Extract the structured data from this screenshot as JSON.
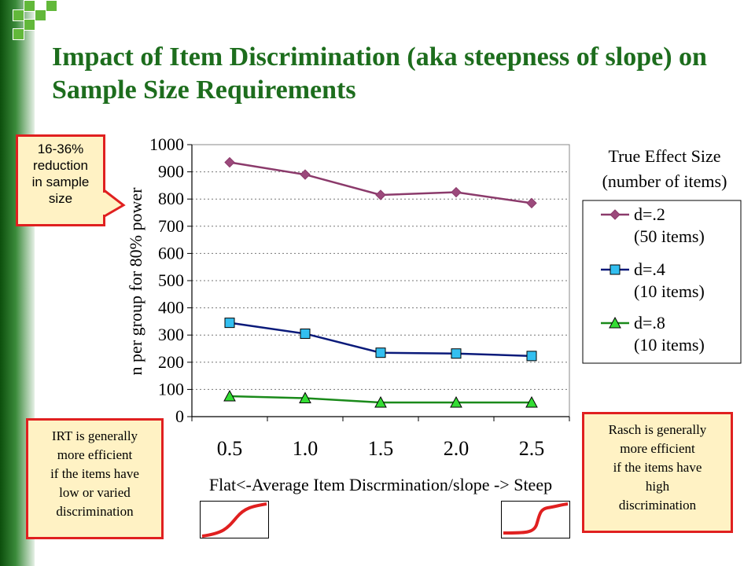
{
  "title": "Impact of Item Discrimination (aka steepness of slope) on Sample Size Requirements",
  "callouts": {
    "reduction": [
      "16-36%",
      "reduction",
      "in sample",
      "size"
    ],
    "irt": [
      "IRT is generally",
      "more efficient",
      "if the items have",
      "low or varied",
      "discrimination"
    ],
    "rasch": [
      "Rasch is generally",
      "more efficient",
      "if the items have",
      "high",
      "discrimination"
    ]
  },
  "colors": {
    "title": "#1d6d1d",
    "callout_border": "#e02020",
    "callout_fill": "#fff2c4",
    "curve": "#e02020"
  },
  "chart_data": {
    "type": "line",
    "categories": [
      "0.5",
      "1.0",
      "1.5",
      "2.0",
      "2.5"
    ],
    "series": [
      {
        "name": "d=.2",
        "name_line2": "(50 items)",
        "color": "#8b3a6b",
        "marker_fill": "#9c4a7c",
        "marker": "diamond",
        "values": [
          935,
          890,
          815,
          825,
          785
        ]
      },
      {
        "name": "d=.4",
        "name_line2": "(10 items)",
        "color": "#0a1a7a",
        "marker_fill": "#33bff0",
        "marker": "square",
        "values": [
          345,
          305,
          235,
          232,
          223
        ]
      },
      {
        "name": "d=.8",
        "name_line2": "(10 items)",
        "color": "#1a8a1a",
        "marker_fill": "#33dd33",
        "marker": "triangle",
        "values": [
          75,
          68,
          52,
          52,
          52
        ]
      }
    ],
    "yticks": [
      "0",
      "100",
      "200",
      "300",
      "400",
      "500",
      "600",
      "700",
      "800",
      "900",
      "1000"
    ],
    "ylim": [
      0,
      1000
    ],
    "ylabel": "n per group for 80% power",
    "xlabel": "Flat<-Average Item Discrmination/slope -> Steep",
    "legend_title": [
      "True Effect Size",
      "(number of items)"
    ],
    "legend_position": "right",
    "grid": "horizontal dotted"
  }
}
